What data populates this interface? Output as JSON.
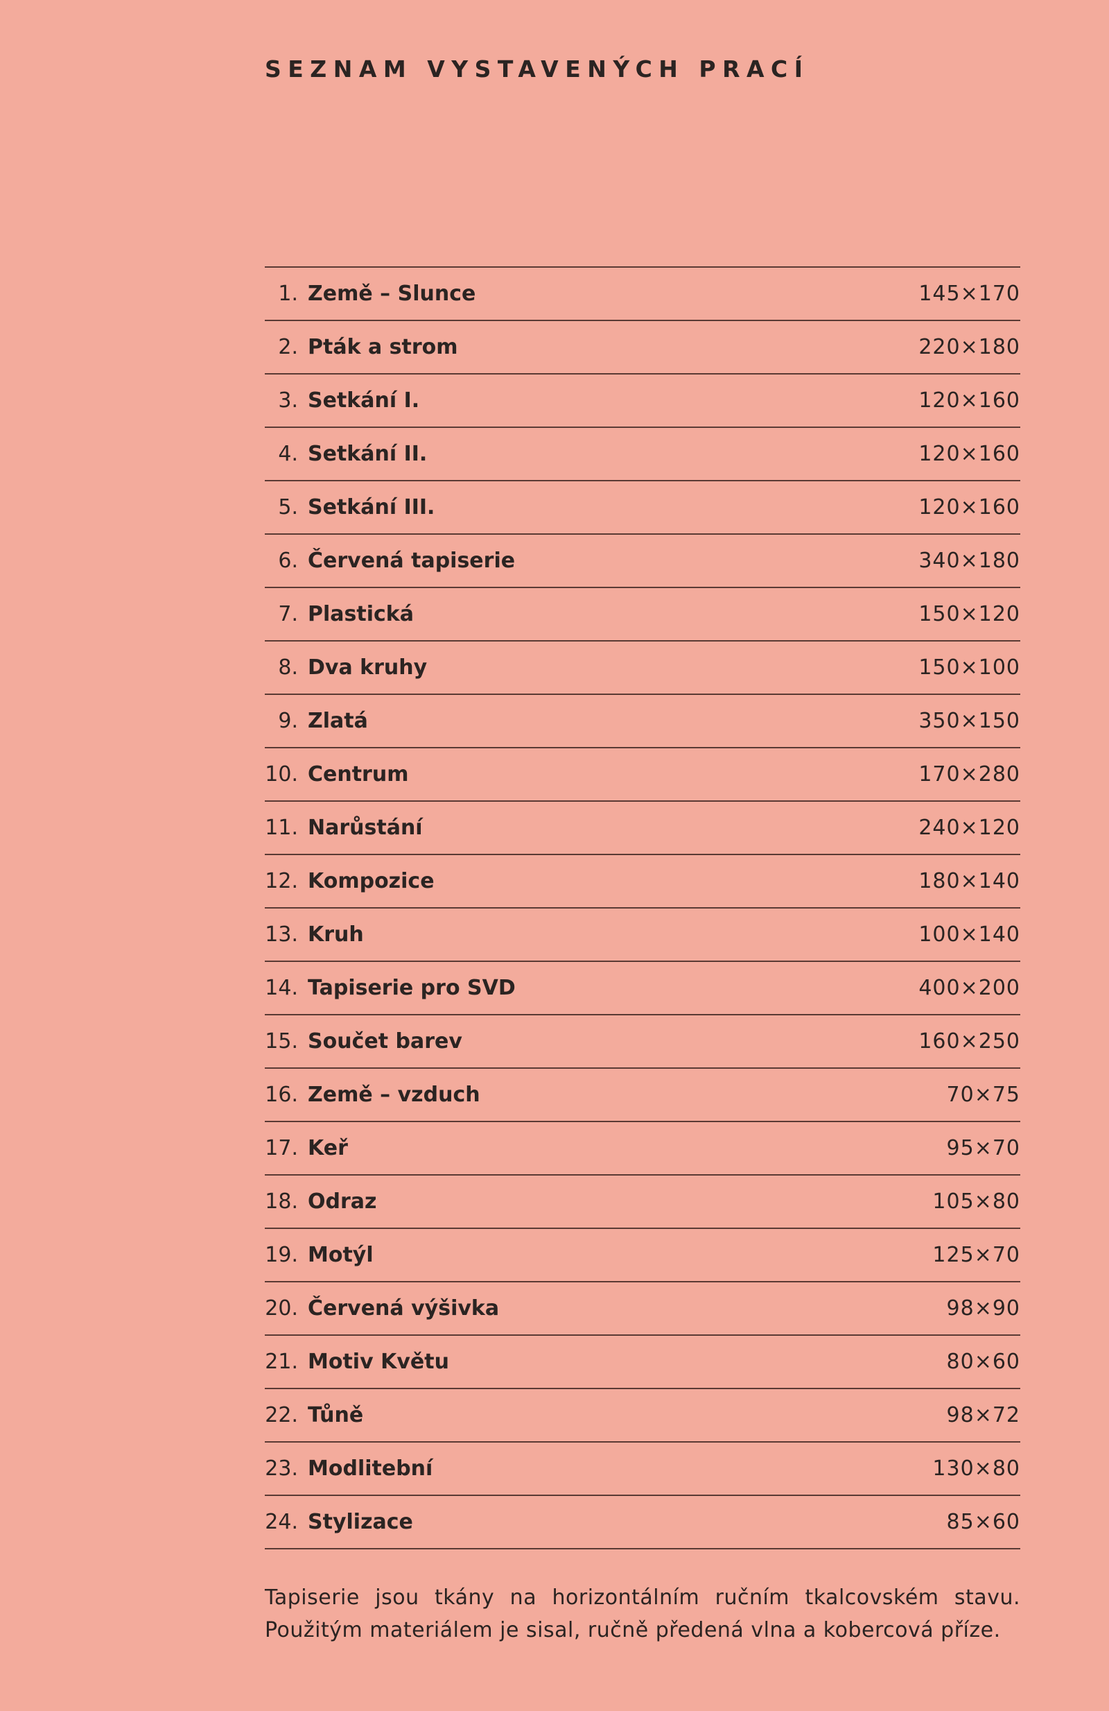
{
  "title": "SEZNAM VYSTAVENÝCH PRACÍ",
  "works": [
    {
      "num": "1.",
      "name": "Země – Slunce",
      "size": "145×170"
    },
    {
      "num": "2.",
      "name": "Pták a strom",
      "size": "220×180"
    },
    {
      "num": "3.",
      "name": "Setkání I.",
      "size": "120×160"
    },
    {
      "num": "4.",
      "name": "Setkání II.",
      "size": "120×160"
    },
    {
      "num": "5.",
      "name": "Setkání III.",
      "size": "120×160"
    },
    {
      "num": "6.",
      "name": "Červená tapiserie",
      "size": "340×180"
    },
    {
      "num": "7.",
      "name": "Plastická",
      "size": "150×120"
    },
    {
      "num": "8.",
      "name": "Dva kruhy",
      "size": "150×100"
    },
    {
      "num": "9.",
      "name": "Zlatá",
      "size": "350×150"
    },
    {
      "num": "10.",
      "name": "Centrum",
      "size": "170×280"
    },
    {
      "num": "11.",
      "name": "Narůstání",
      "size": "240×120"
    },
    {
      "num": "12.",
      "name": "Kompozice",
      "size": "180×140"
    },
    {
      "num": "13.",
      "name": "Kruh",
      "size": "100×140"
    },
    {
      "num": "14.",
      "name": "Tapiserie pro SVD",
      "size": "400×200"
    },
    {
      "num": "15.",
      "name": "Součet barev",
      "size": "160×250"
    },
    {
      "num": "16.",
      "name": "Země – vzduch",
      "size": "70×75"
    },
    {
      "num": "17.",
      "name": "Keř",
      "size": "95×70"
    },
    {
      "num": "18.",
      "name": "Odraz",
      "size": "105×80"
    },
    {
      "num": "19.",
      "name": "Motýl",
      "size": "125×70"
    },
    {
      "num": "20.",
      "name": "Červená výšivka",
      "size": "98×90"
    },
    {
      "num": "21.",
      "name": "Motiv Květu",
      "size": "80×60"
    },
    {
      "num": "22.",
      "name": "Tůně",
      "size": "98×72"
    },
    {
      "num": "23.",
      "name": "Modlitební",
      "size": "130×80"
    },
    {
      "num": "24.",
      "name": "Stylizace",
      "size": "85×60"
    }
  ],
  "footer": "Tapiserie jsou tkány na horizontálním ručním tkalcovském stavu. Použitým materiálem je sisal, ručně předená vlna a kobercová příze."
}
